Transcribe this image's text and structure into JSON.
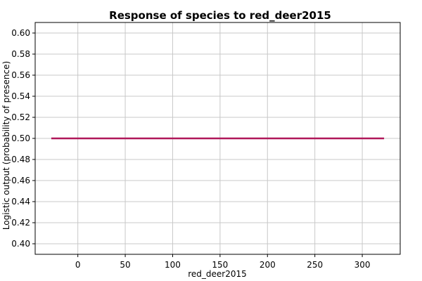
{
  "chart_data": {
    "type": "line",
    "title": "Response of species to red_deer2015",
    "xlabel": "red_deer2015",
    "ylabel": "Logistic output (probability of presence)",
    "xlim": [
      -45,
      340
    ],
    "ylim": [
      0.39,
      0.61
    ],
    "xticks": [
      0,
      50,
      100,
      150,
      200,
      250,
      300
    ],
    "yticks": [
      0.4,
      0.42,
      0.44,
      0.46,
      0.48,
      0.5,
      0.52,
      0.54,
      0.56,
      0.58,
      0.6
    ],
    "grid": true,
    "series": [
      {
        "color": "#b0185a",
        "x": [
          -28,
          323
        ],
        "y": [
          0.5,
          0.5
        ]
      }
    ]
  }
}
